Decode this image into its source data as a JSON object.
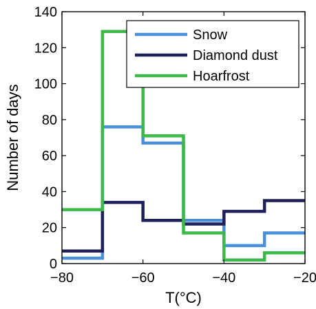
{
  "chart_data": {
    "type": "line",
    "step": "post",
    "xlabel": "T(°C)",
    "ylabel": "Number of days",
    "xlim": [
      -80,
      -20
    ],
    "ylim": [
      0,
      140
    ],
    "xticks": [
      -80,
      -60,
      -40,
      -20
    ],
    "yticks": [
      0,
      20,
      40,
      60,
      80,
      100,
      120,
      140
    ],
    "xtick_labels": [
      "−80",
      "−60",
      "−40",
      "−20"
    ],
    "ytick_labels": [
      "0",
      "20",
      "40",
      "60",
      "80",
      "100",
      "120",
      "140"
    ],
    "legend_position": "top-right",
    "grid": false,
    "bin_edges": [
      -80,
      -70,
      -60,
      -50,
      -40,
      -30,
      -20
    ],
    "series": [
      {
        "name": "Snow",
        "color": "#4a90d9",
        "values": [
          3,
          76,
          67,
          24,
          10,
          17
        ]
      },
      {
        "name": "Diamond dust",
        "color": "#1f1f5a",
        "values": [
          7,
          34,
          24,
          22,
          29,
          35
        ]
      },
      {
        "name": "Hoarfrost",
        "color": "#3db84a",
        "values": [
          30,
          129,
          71,
          17,
          2,
          6
        ]
      }
    ]
  }
}
